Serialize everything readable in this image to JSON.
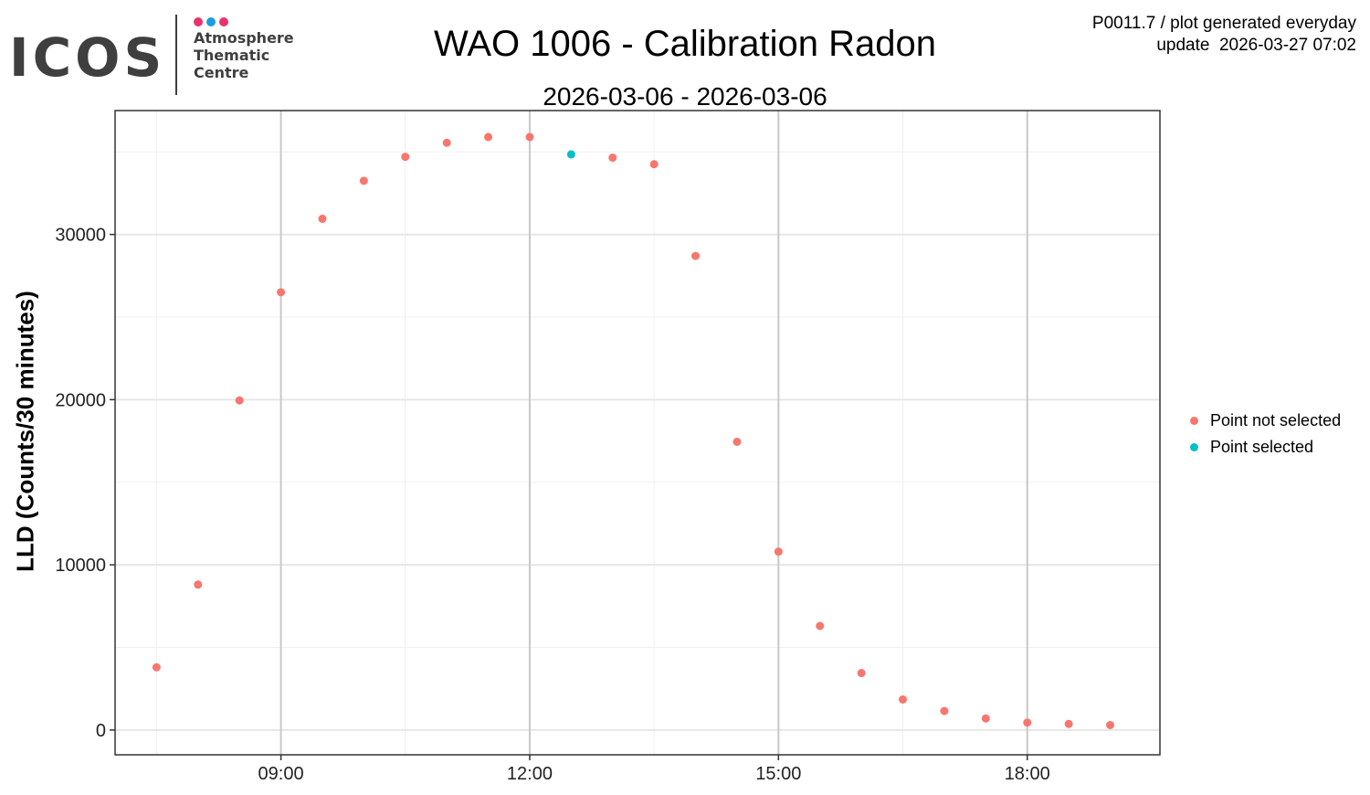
{
  "logo": {
    "wordmark": "ICOS",
    "lines": [
      "Atmosphere",
      "Thematic",
      "Centre"
    ],
    "dot_colors": [
      "#e8336e",
      "#1e9be0",
      "#e8336e"
    ]
  },
  "header": {
    "meta_line1": "P0011.7 / plot generated everyday",
    "meta_line2": "update  2026-03-27 07:02"
  },
  "chart_data": {
    "type": "scatter",
    "title": "WAO 1006 - Calibration Radon",
    "subtitle": "2026-03-06 - 2026-03-06",
    "xlabel": "",
    "ylabel": "LLD (Counts/30 minutes)",
    "xlim": [
      7.0,
      19.6
    ],
    "ylim": [
      -1500,
      37500
    ],
    "x_unit": "hours of day",
    "x_major_ticks": [
      9,
      12,
      15,
      18
    ],
    "x_tick_labels": [
      "09:00",
      "12:00",
      "15:00",
      "18:00"
    ],
    "x_minor_ticks": [
      7.5,
      10.5,
      13.5,
      16.5
    ],
    "y_major_ticks": [
      0,
      10000,
      20000,
      30000
    ],
    "y_tick_labels": [
      "0",
      "10000",
      "20000",
      "30000"
    ],
    "y_minor_ticks": [
      5000,
      15000,
      25000,
      35000
    ],
    "grid": true,
    "legend_position": "right",
    "series": [
      {
        "name": "Point not selected",
        "color": "#F8766D",
        "x": [
          7.5,
          8.0,
          8.5,
          9.0,
          9.5,
          10.0,
          10.5,
          11.0,
          11.5,
          12.0,
          13.0,
          13.5,
          14.0,
          14.5,
          15.0,
          15.5,
          16.0,
          16.5,
          17.0,
          17.5,
          18.0,
          18.5,
          19.0
        ],
        "y": [
          3800,
          8800,
          19950,
          26500,
          30950,
          33250,
          34700,
          35550,
          35900,
          35900,
          34650,
          34250,
          28700,
          17450,
          10800,
          6300,
          3450,
          1850,
          1150,
          700,
          450,
          370,
          300
        ]
      },
      {
        "name": "Point selected",
        "color": "#00BFC4",
        "x": [
          12.5
        ],
        "y": [
          34850
        ]
      }
    ]
  }
}
